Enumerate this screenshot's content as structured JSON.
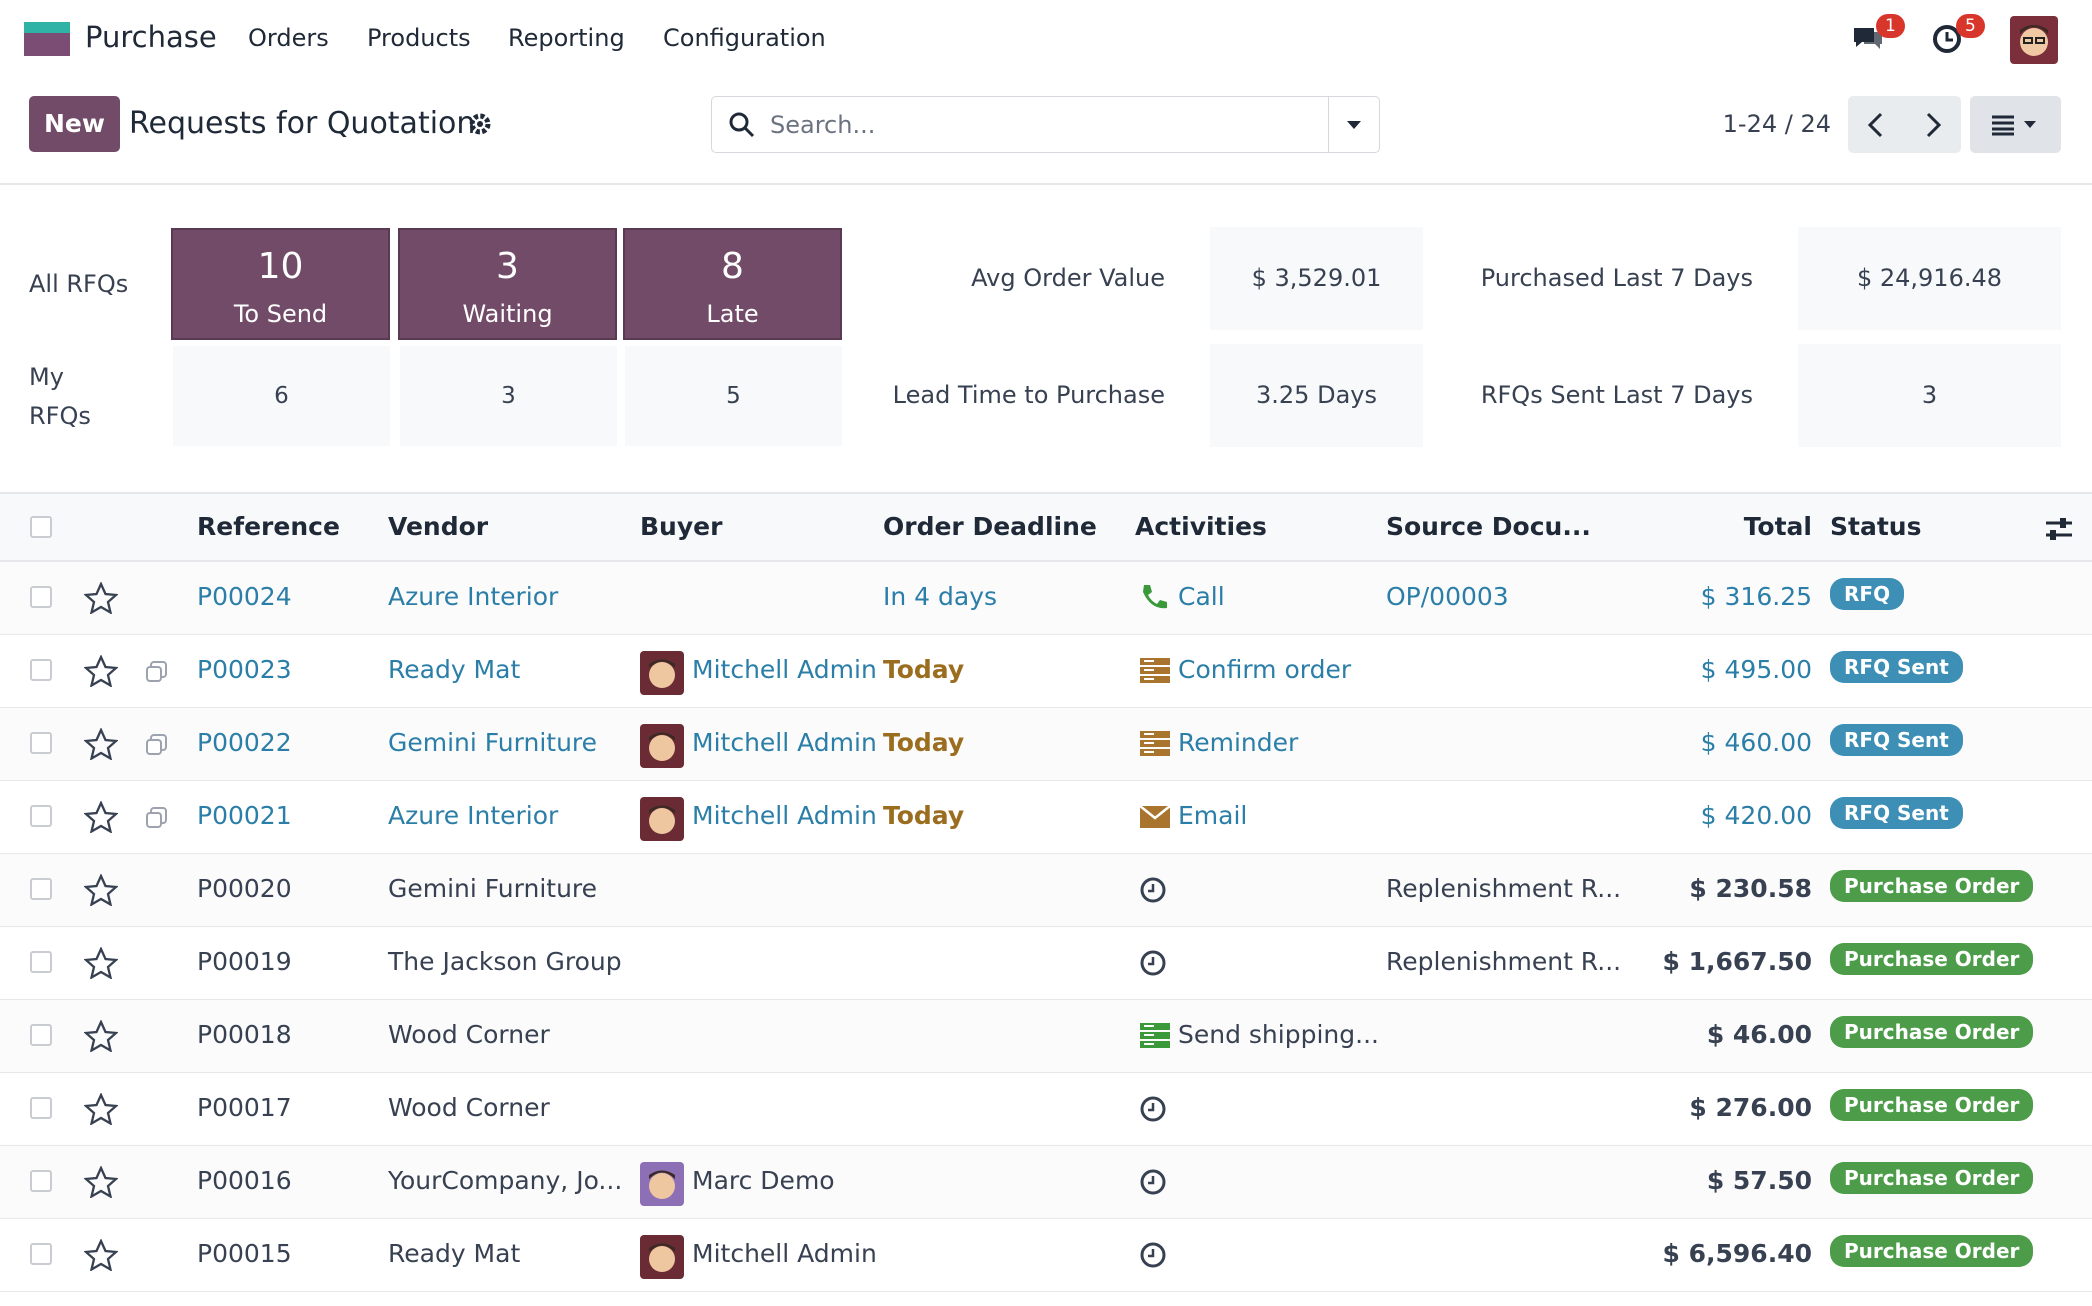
{
  "nav": {
    "app": "Purchase",
    "menu": [
      "Orders",
      "Products",
      "Reporting",
      "Configuration"
    ],
    "message_count": 1,
    "activity_count": 5
  },
  "control": {
    "new_button": "New",
    "title": "Requests for Quotation",
    "search_placeholder": "Search...",
    "pager": "1-24 / 24"
  },
  "dashboard": {
    "all_label": "All RFQs",
    "my_label": "My RFQs",
    "tiles": [
      {
        "value": 10,
        "label": "To Send",
        "mine": 6
      },
      {
        "value": 3,
        "label": "Waiting",
        "mine": 3
      },
      {
        "value": 8,
        "label": "Late",
        "mine": 5
      }
    ],
    "stats": [
      {
        "label": "Avg Order Value",
        "value": "$ 3,529.01"
      },
      {
        "label": "Lead Time to Purchase",
        "value": "3.25 Days"
      },
      {
        "label": "Purchased Last 7 Days",
        "value": "$ 24,916.48"
      },
      {
        "label": "RFQs Sent Last 7 Days",
        "value": "3"
      }
    ]
  },
  "table": {
    "columns": [
      "Reference",
      "Vendor",
      "Buyer",
      "Order Deadline",
      "Activities",
      "Source Docu...",
      "Total",
      "Status"
    ],
    "rows": [
      {
        "reference": "P00024",
        "vendor": "Azure Interior",
        "deadline": "In 4 days",
        "activity_icon": "phone",
        "activity": "Call",
        "source": "OP/00003",
        "total": "$ 316.25",
        "status": "RFQ",
        "status_color": "#3d8fb5",
        "highlight": true
      },
      {
        "reference": "P00023",
        "vendor": "Ready Mat",
        "buyer": "Mitchell Admin",
        "deadline": "Today",
        "activity_icon": "stack",
        "activity": "Confirm order",
        "total": "$ 495.00",
        "status": "RFQ Sent",
        "status_color": "#3d8fb5",
        "highlight": true
      },
      {
        "reference": "P00022",
        "vendor": "Gemini Furniture",
        "buyer": "Mitchell Admin",
        "deadline": "Today",
        "activity_icon": "stack",
        "activity": "Reminder",
        "total": "$ 460.00",
        "status": "RFQ Sent",
        "status_color": "#3d8fb5",
        "highlight": true
      },
      {
        "reference": "P00021",
        "vendor": "Azure Interior",
        "buyer": "Mitchell Admin",
        "deadline": "Today",
        "activity_icon": "mail",
        "activity": "Email",
        "total": "$ 420.00",
        "status": "RFQ Sent",
        "status_color": "#3d8fb5",
        "highlight": true
      },
      {
        "reference": "P00020",
        "vendor": "Gemini Furniture",
        "activity_icon": "clock",
        "source": "Replenishment R...",
        "total": "$ 230.58",
        "status": "Purchase Order",
        "status_color": "#4c9c4a"
      },
      {
        "reference": "P00019",
        "vendor": "The Jackson Group",
        "activity_icon": "clock",
        "source": "Replenishment R...",
        "total": "$ 1,667.50",
        "status": "Purchase Order",
        "status_color": "#4c9c4a"
      },
      {
        "reference": "P00018",
        "vendor": "Wood Corner",
        "activity_icon": "greenstack",
        "activity": "Send shipping...",
        "total": "$ 46.00",
        "status": "Purchase Order",
        "status_color": "#4c9c4a"
      },
      {
        "reference": "P00017",
        "vendor": "Wood Corner",
        "activity_icon": "clock",
        "total": "$ 276.00",
        "status": "Purchase Order",
        "status_color": "#4c9c4a"
      },
      {
        "reference": "P00016",
        "vendor": "YourCompany, Jo...",
        "buyer": "Marc Demo",
        "activity_icon": "clock",
        "total": "$ 57.50",
        "status": "Purchase Order",
        "status_color": "#4c9c4a"
      },
      {
        "reference": "P00015",
        "vendor": "Ready Mat",
        "buyer": "Mitchell Admin",
        "activity_icon": "clock",
        "total": "$ 6,596.40",
        "status": "Purchase Order",
        "status_color": "#4c9c4a"
      }
    ]
  }
}
